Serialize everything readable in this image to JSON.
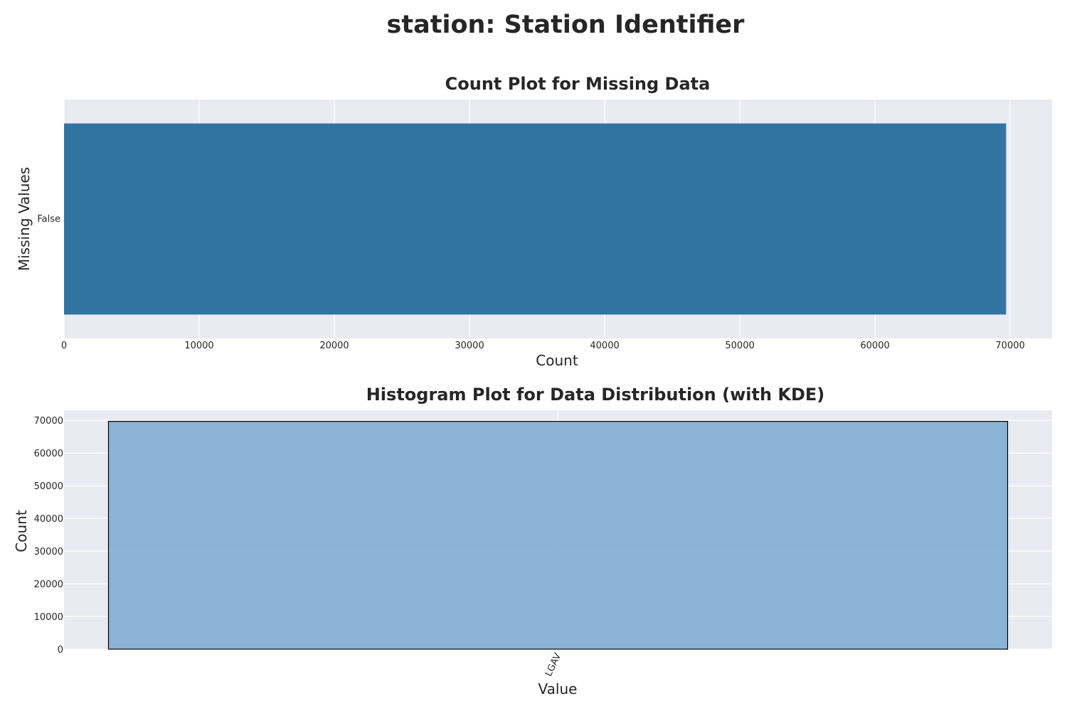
{
  "figure": {
    "suptitle": "station: Station Identifier"
  },
  "chart_data": [
    {
      "type": "bar",
      "orientation": "horizontal",
      "title": "Count Plot for Missing Data",
      "xlabel": "Count",
      "ylabel": "Missing Values",
      "categories": [
        "False"
      ],
      "values": [
        69700
      ],
      "xlim": [
        0,
        73100
      ],
      "xticks": [
        0,
        10000,
        20000,
        30000,
        40000,
        50000,
        60000,
        70000
      ],
      "grid": true,
      "colors": {
        "bar": "#3274a1",
        "background": "#eaeaf2",
        "grid": "#ffffff"
      }
    },
    {
      "type": "bar",
      "subtype": "histogram",
      "title": "Histogram Plot for Data Distribution (with KDE)",
      "xlabel": "Value",
      "ylabel": "Count",
      "categories": [
        "LGAV"
      ],
      "values": [
        69700
      ],
      "ylim": [
        0,
        73100
      ],
      "yticks": [
        0,
        10000,
        20000,
        30000,
        40000,
        50000,
        60000,
        70000
      ],
      "grid": true,
      "colors": {
        "bar": "#86b0d3",
        "edge": "#000000",
        "background": "#eaeaf2",
        "grid": "#ffffff"
      }
    }
  ]
}
